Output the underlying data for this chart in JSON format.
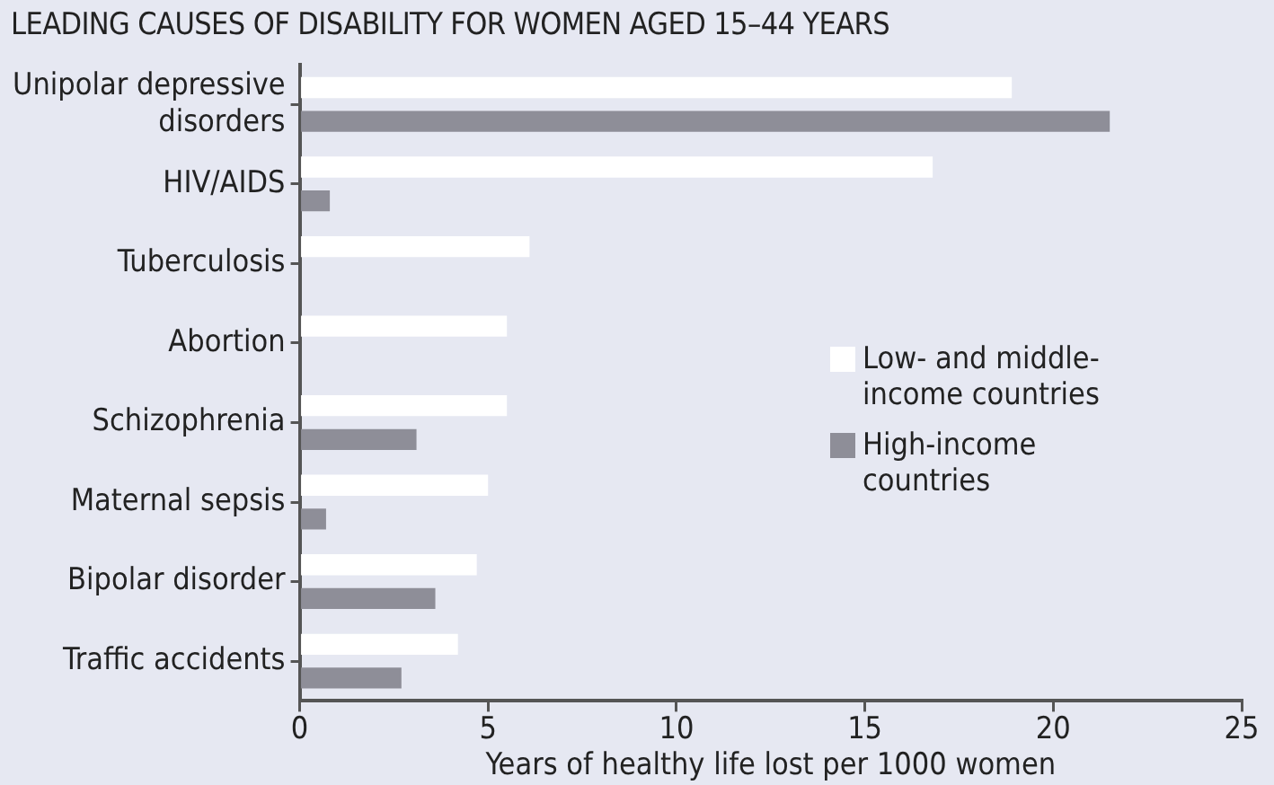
{
  "chart_data": {
    "type": "bar",
    "orientation": "horizontal",
    "title": "LEADING CAUSES OF DISABILITY FOR WOMEN AGED 15–44 YEARS",
    "xlabel": "Years of healthy life lost per 1000 women",
    "categories": [
      "Unipolar depressive disorders",
      "HIV/AIDS",
      "Tuberculosis",
      "Abortion",
      "Schizophrenia",
      "Maternal sepsis",
      "Bipolar disorder",
      "Traffic accidents"
    ],
    "series": [
      {
        "name": "Low- and middle-income countries",
        "color": "#ffffff",
        "values": [
          18.9,
          16.8,
          6.1,
          5.5,
          5.5,
          5.0,
          4.7,
          4.2
        ]
      },
      {
        "name": "High-income countries",
        "color": "#8e8e98",
        "values": [
          21.5,
          0.8,
          null,
          null,
          3.1,
          0.7,
          3.6,
          2.7
        ]
      }
    ],
    "xlim": [
      0,
      25
    ],
    "xticks": [
      0,
      5,
      10,
      15,
      20,
      25
    ],
    "grid": false,
    "legend": "right"
  }
}
